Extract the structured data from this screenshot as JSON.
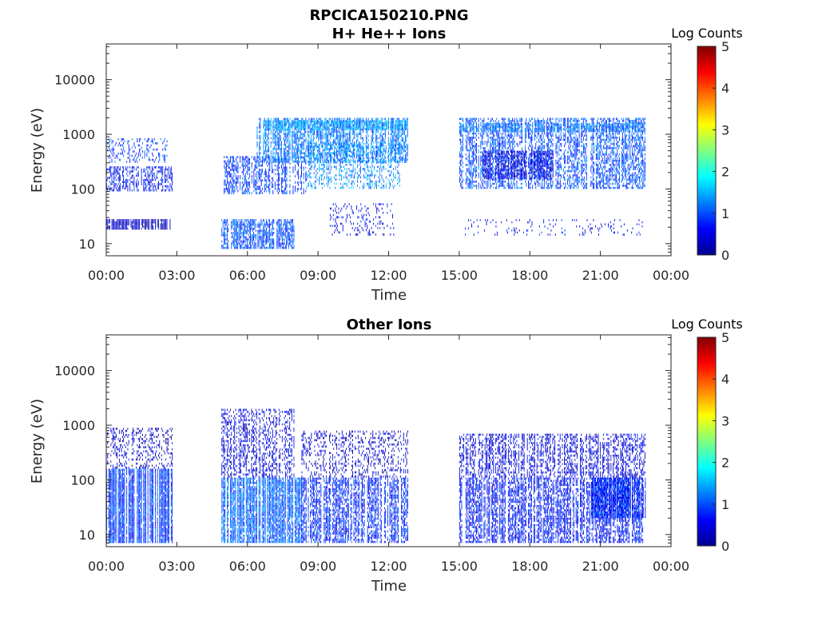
{
  "figure_title": "RPCICA150210.PNG",
  "colormap_name": "jet",
  "chart_data": [
    {
      "type": "heatmap",
      "title": "H+ He++ Ions",
      "xlabel": "Time",
      "ylabel": "Energy (eV)",
      "x_ticks": [
        "00:00",
        "03:00",
        "06:00",
        "09:00",
        "12:00",
        "15:00",
        "18:00",
        "21:00",
        "00:00"
      ],
      "xlim_hours": [
        0,
        24
      ],
      "y_scale": "log",
      "y_ticks": [
        "10",
        "100",
        "1000",
        "10000"
      ],
      "ylim": [
        6,
        45000
      ],
      "colorbar": {
        "label": "Log Counts",
        "ticks": [
          "0",
          "1",
          "2",
          "3",
          "4",
          "5"
        ],
        "range": [
          0,
          5
        ]
      },
      "regions": [
        {
          "t0": 0.0,
          "t1": 2.7,
          "e0": 18,
          "e1": 28,
          "level": 0.35,
          "density": 0.9
        },
        {
          "t0": 0.0,
          "t1": 2.8,
          "e0": 90,
          "e1": 260,
          "level": 0.7,
          "density": 0.55
        },
        {
          "t0": 0.0,
          "t1": 2.6,
          "e0": 300,
          "e1": 850,
          "level": 0.9,
          "density": 0.3
        },
        {
          "t0": 4.9,
          "t1": 8.0,
          "e0": 8,
          "e1": 28,
          "level": 1.0,
          "density": 0.75
        },
        {
          "t0": 5.0,
          "t1": 8.5,
          "e0": 80,
          "e1": 400,
          "level": 0.9,
          "density": 0.6
        },
        {
          "t0": 6.4,
          "t1": 12.8,
          "e0": 300,
          "e1": 2000,
          "level": 1.2,
          "density": 0.7
        },
        {
          "t0": 8.5,
          "t1": 12.5,
          "e0": 100,
          "e1": 700,
          "level": 1.3,
          "density": 0.4
        },
        {
          "t0": 6.8,
          "t1": 12.8,
          "e0": 1200,
          "e1": 1800,
          "level": 1.4,
          "density": 0.9
        },
        {
          "t0": 9.5,
          "t1": 12.2,
          "e0": 14,
          "e1": 55,
          "level": 0.6,
          "density": 0.2
        },
        {
          "t0": 15.0,
          "t1": 22.9,
          "e0": 100,
          "e1": 2000,
          "level": 1.0,
          "density": 0.6
        },
        {
          "t0": 15.0,
          "t1": 22.9,
          "e0": 1100,
          "e1": 1600,
          "level": 1.2,
          "density": 0.8
        },
        {
          "t0": 16.0,
          "t1": 19.0,
          "e0": 150,
          "e1": 500,
          "level": 0.5,
          "density": 0.7
        },
        {
          "t0": 15.2,
          "t1": 22.8,
          "e0": 14,
          "e1": 28,
          "level": 0.6,
          "density": 0.12
        }
      ]
    },
    {
      "type": "heatmap",
      "title": "Other Ions",
      "xlabel": "Time",
      "ylabel": "Energy (eV)",
      "x_ticks": [
        "00:00",
        "03:00",
        "06:00",
        "09:00",
        "12:00",
        "15:00",
        "18:00",
        "21:00",
        "00:00"
      ],
      "xlim_hours": [
        0,
        24
      ],
      "y_scale": "log",
      "y_ticks": [
        "10",
        "100",
        "1000",
        "10000"
      ],
      "ylim": [
        6,
        45000
      ],
      "colorbar": {
        "label": "Log Counts",
        "ticks": [
          "0",
          "1",
          "2",
          "3",
          "4",
          "5"
        ],
        "range": [
          0,
          5
        ]
      },
      "regions": [
        {
          "t0": 0.0,
          "t1": 2.8,
          "e0": 7,
          "e1": 160,
          "level": 0.9,
          "density": 0.95
        },
        {
          "t0": 0.0,
          "t1": 2.8,
          "e0": 160,
          "e1": 900,
          "level": 0.4,
          "density": 0.3
        },
        {
          "t0": 4.9,
          "t1": 8.3,
          "e0": 7,
          "e1": 110,
          "level": 1.1,
          "density": 0.9
        },
        {
          "t0": 4.9,
          "t1": 8.0,
          "e0": 110,
          "e1": 2000,
          "level": 0.5,
          "density": 0.45
        },
        {
          "t0": 8.3,
          "t1": 12.8,
          "e0": 7,
          "e1": 110,
          "level": 0.8,
          "density": 0.7
        },
        {
          "t0": 8.3,
          "t1": 12.8,
          "e0": 110,
          "e1": 800,
          "level": 0.4,
          "density": 0.3
        },
        {
          "t0": 15.0,
          "t1": 22.9,
          "e0": 7,
          "e1": 110,
          "level": 0.7,
          "density": 0.7
        },
        {
          "t0": 15.0,
          "t1": 22.9,
          "e0": 110,
          "e1": 700,
          "level": 0.5,
          "density": 0.55
        },
        {
          "t0": 20.6,
          "t1": 22.9,
          "e0": 20,
          "e1": 110,
          "level": 0.8,
          "density": 0.9
        }
      ]
    }
  ]
}
